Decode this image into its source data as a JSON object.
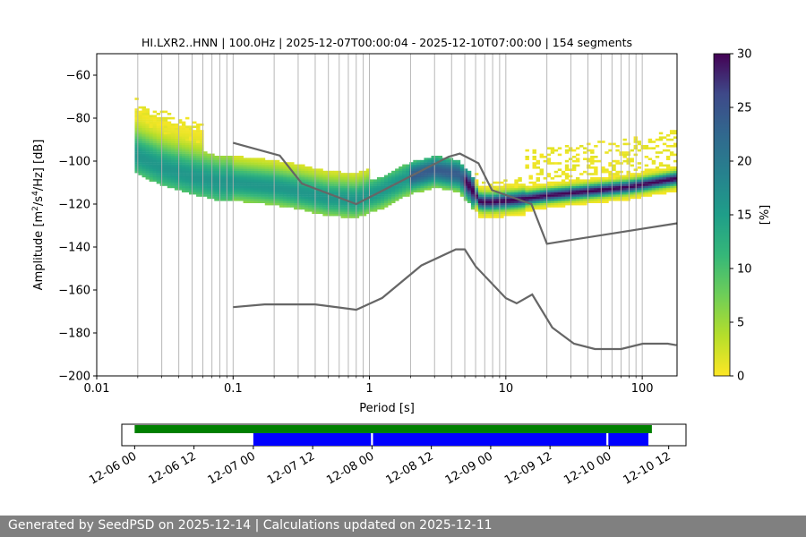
{
  "chart_data": {
    "type": "heatmap",
    "title": "HI.LXR2..HNN | 100.0Hz | 2025-12-07T00:00:04 - 2025-12-10T07:00:00 | 154 segments",
    "xlabel": "Period [s]",
    "ylabel_base": "Amplitude [m",
    "ylabel_sup1": "2",
    "ylabel_mid": "/s",
    "ylabel_sup2": "4",
    "ylabel_end": "/Hz] [dB]",
    "x_scale": "log",
    "xlim": [
      0.01,
      180
    ],
    "ylim": [
      -200,
      -50
    ],
    "x_ticks": [
      0.01,
      0.1,
      1,
      10,
      100
    ],
    "x_tick_labels": [
      "0.01",
      "0.1",
      "1",
      "10",
      "100"
    ],
    "y_ticks": [
      -200,
      -180,
      -160,
      -140,
      -120,
      -100,
      -80,
      -60
    ],
    "y_tick_labels": [
      "−200",
      "−180",
      "−160",
      "−140",
      "−120",
      "−100",
      "−80",
      "−60"
    ],
    "grid": "vertical",
    "colormap": "viridis_r",
    "colorbar": {
      "label": "[%]",
      "range": [
        0,
        30
      ],
      "ticks": [
        0,
        5,
        10,
        15,
        20,
        25,
        30
      ],
      "tick_labels": [
        "0",
        "5",
        "10",
        "15",
        "20",
        "25",
        "30"
      ]
    },
    "mode_curve": {
      "period": [
        0.019,
        0.03,
        0.05,
        0.08,
        0.1,
        0.2,
        0.3,
        0.5,
        0.8,
        1.2,
        2,
        3,
        4.5,
        5.5,
        6.5,
        8,
        12,
        20,
        40,
        80,
        180
      ],
      "db": [
        -97,
        -103,
        -107,
        -110,
        -110,
        -112,
        -114,
        -117,
        -118,
        -114,
        -107,
        -104,
        -106,
        -112,
        -119,
        -119,
        -118,
        -116,
        -114,
        -112,
        -108
      ]
    },
    "nhnm": {
      "period": [
        0.1,
        0.17,
        0.22,
        0.32,
        0.8,
        3.8,
        4.6,
        6.3,
        7.9,
        15.4,
        20,
        354.8
      ],
      "db": [
        -91.5,
        -95.5,
        -97.4,
        -110.5,
        -120.0,
        -98.0,
        -96.5,
        -101.0,
        -113.5,
        -120.0,
        -138.5,
        -126.0
      ]
    },
    "nlnm": {
      "period": [
        0.1,
        0.17,
        0.4,
        0.8,
        1.24,
        2.4,
        4.3,
        5.0,
        6.0,
        10.0,
        12.0,
        15.6,
        21.9,
        31.6,
        45.0,
        70.0,
        101.0,
        154.0,
        178.0
      ],
      "db": [
        -168.0,
        -166.7,
        -166.7,
        -169.2,
        -163.7,
        -148.6,
        -141.1,
        -141.1,
        -149.0,
        -163.8,
        -166.2,
        -162.1,
        -177.5,
        -185.0,
        -187.5,
        -187.5,
        -185.0,
        -185.0,
        -185.7
      ]
    },
    "timeline": {
      "tick_labels": [
        "12-06 00",
        "12-06 12",
        "12-07 00",
        "12-07 12",
        "12-08 00",
        "12-08 12",
        "12-09 00",
        "12-09 12",
        "12-10 00",
        "12-10 12"
      ],
      "tick_hours": [
        0,
        12,
        24,
        36,
        48,
        60,
        72,
        84,
        96,
        108
      ],
      "xlim_hours": [
        -2.6,
        111.5
      ],
      "available_data": [
        [
          0,
          104.6
        ]
      ],
      "processed_segments": [
        [
          24.0,
          47.8
        ],
        [
          48.2,
          95.4
        ],
        [
          95.8,
          103.9
        ]
      ],
      "available_color": "#008000",
      "processed_color": "#0000ff"
    }
  },
  "footer": {
    "text": "Generated by SeedPSD on 2025-12-14 | Calculations updated on 2025-12-11"
  }
}
